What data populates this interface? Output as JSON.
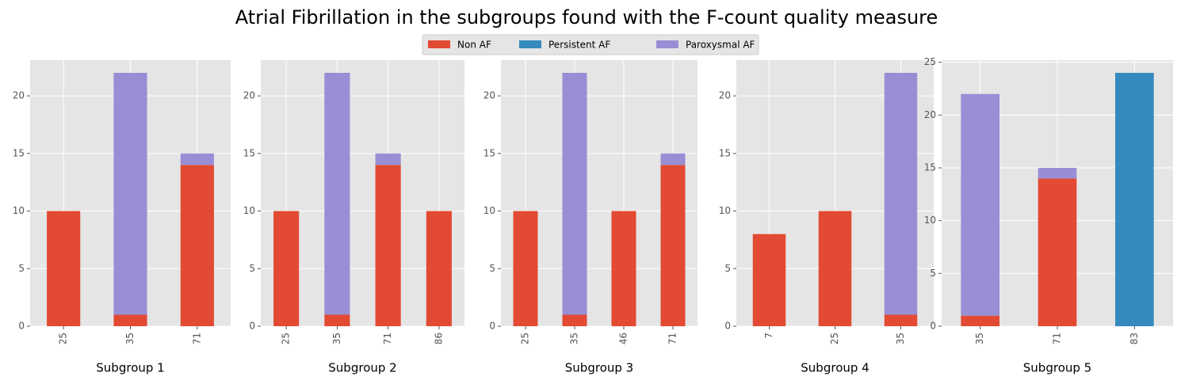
{
  "title": "Atrial Fibrillation in the subgroups found with the F-count quality measure",
  "chart_data": [
    {
      "type": "bar",
      "stacked": true,
      "xlabel": "Subgroup 1",
      "categories": [
        "25",
        "35",
        "71"
      ],
      "series": [
        {
          "name": "Non AF",
          "color": "#E24A33",
          "values": [
            10,
            1,
            14
          ]
        },
        {
          "name": "Paroxysmal AF",
          "color": "#988ED5",
          "values": [
            0,
            21,
            1
          ]
        }
      ],
      "ylim": [
        0,
        23.1
      ],
      "yticks": [
        0,
        5,
        10,
        15,
        20
      ],
      "grid": true
    },
    {
      "type": "bar",
      "stacked": true,
      "xlabel": "Subgroup 2",
      "categories": [
        "25",
        "35",
        "71",
        "86"
      ],
      "series": [
        {
          "name": "Non AF",
          "color": "#E24A33",
          "values": [
            10,
            1,
            14,
            10
          ]
        },
        {
          "name": "Paroxysmal AF",
          "color": "#988ED5",
          "values": [
            0,
            21,
            1,
            0
          ]
        }
      ],
      "ylim": [
        0,
        23.1
      ],
      "yticks": [
        0,
        5,
        10,
        15,
        20
      ],
      "grid": true
    },
    {
      "type": "bar",
      "stacked": true,
      "xlabel": "Subgroup 3",
      "categories": [
        "25",
        "35",
        "46",
        "71"
      ],
      "series": [
        {
          "name": "Non AF",
          "color": "#E24A33",
          "values": [
            10,
            1,
            10,
            14
          ]
        },
        {
          "name": "Paroxysmal AF",
          "color": "#988ED5",
          "values": [
            0,
            21,
            0,
            1
          ]
        }
      ],
      "ylim": [
        0,
        23.1
      ],
      "yticks": [
        0,
        5,
        10,
        15,
        20
      ],
      "grid": true
    },
    {
      "type": "bar",
      "stacked": true,
      "xlabel": "Subgroup 4",
      "categories": [
        "7",
        "25",
        "35"
      ],
      "series": [
        {
          "name": "Non AF",
          "color": "#E24A33",
          "values": [
            8,
            10,
            1
          ]
        },
        {
          "name": "Paroxysmal AF",
          "color": "#988ED5",
          "values": [
            0,
            0,
            21
          ]
        }
      ],
      "ylim": [
        0,
        23.1
      ],
      "yticks": [
        0,
        5,
        10,
        15,
        20
      ],
      "grid": true
    },
    {
      "type": "bar",
      "stacked": true,
      "xlabel": "Subgroup 5",
      "categories": [
        "35",
        "71",
        "83"
      ],
      "series": [
        {
          "name": "Non AF",
          "color": "#E24A33",
          "values": [
            1,
            14,
            0
          ]
        },
        {
          "name": "Persistent AF",
          "color": "#348ABD",
          "values": [
            0,
            0,
            24
          ]
        },
        {
          "name": "Paroxysmal AF",
          "color": "#988ED5",
          "values": [
            21,
            1,
            0
          ]
        }
      ],
      "ylim": [
        0,
        25.2
      ],
      "yticks": [
        0,
        5,
        10,
        15,
        20,
        25
      ],
      "grid": true
    }
  ]
}
